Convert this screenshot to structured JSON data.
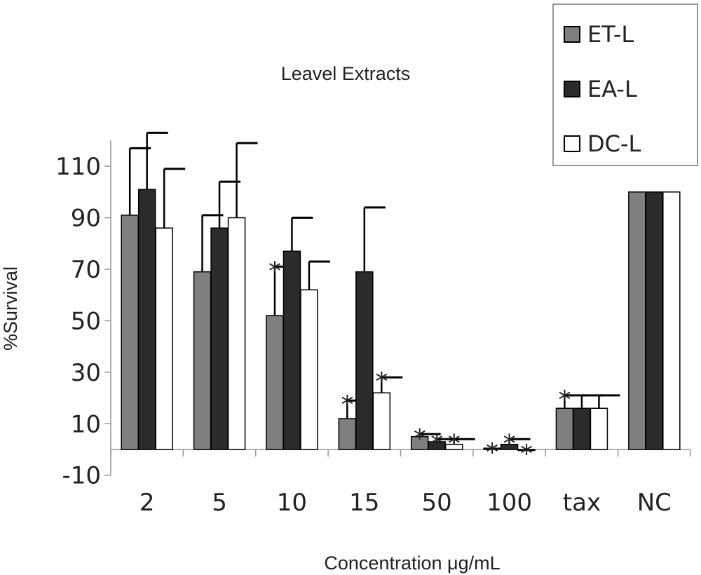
{
  "chart_data": {
    "type": "bar",
    "title": "Leavel Extracts",
    "xlabel": "Concentration μg/mL",
    "ylabel": "%Survival",
    "categories": [
      "2",
      "5",
      "10",
      "15",
      "50",
      "100",
      "tax",
      "NC"
    ],
    "ylim": [
      -10,
      120
    ],
    "yticks": [
      -10,
      10,
      30,
      50,
      70,
      90,
      110
    ],
    "grid": false,
    "legend_position": "top-right",
    "series": [
      {
        "name": "ET-L",
        "color": "#7f7f7f",
        "values": [
          91,
          69,
          52,
          12,
          5,
          0.5,
          16,
          100
        ],
        "errors": [
          26,
          22,
          19,
          7,
          1,
          0,
          5,
          0
        ],
        "stars": [
          "",
          "",
          "*",
          "*",
          "*",
          "*",
          "*",
          ""
        ]
      },
      {
        "name": "EA-L",
        "color": "#2b2b2b",
        "values": [
          101,
          86,
          77,
          69,
          3,
          2,
          16,
          100
        ],
        "errors": [
          22,
          18,
          13,
          25,
          1,
          2,
          5,
          0
        ],
        "stars": [
          "",
          "",
          "",
          "",
          "*",
          "*",
          "",
          ""
        ]
      },
      {
        "name": "DC-L",
        "color": "#ffffff",
        "values": [
          86,
          90,
          62,
          22,
          2,
          0,
          16,
          100
        ],
        "errors": [
          23,
          29,
          11,
          6,
          2,
          0,
          5,
          0
        ],
        "stars": [
          "",
          "",
          "",
          "*",
          "*",
          "*",
          "",
          ""
        ]
      }
    ]
  }
}
